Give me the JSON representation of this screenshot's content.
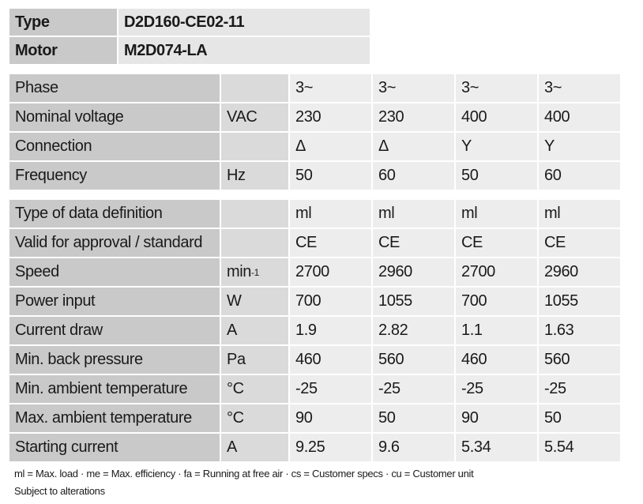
{
  "header": {
    "rows": [
      [
        "Type",
        "D2D160-CE02-11"
      ],
      [
        "Motor",
        "M2D074-LA"
      ]
    ]
  },
  "table": {
    "groups": [
      [
        {
          "label": "Phase",
          "values": [
            "3~",
            "3~",
            "3~",
            "3~"
          ]
        },
        {
          "label": "Nominal voltage",
          "unit": "VAC",
          "values": [
            230,
            230,
            400,
            400
          ]
        },
        {
          "label": "Connection",
          "values": [
            "Δ",
            "Δ",
            "Y",
            "Y"
          ]
        },
        {
          "label": "Frequency",
          "unit": "Hz",
          "values": [
            50,
            60,
            50,
            60
          ]
        }
      ],
      [
        {
          "label": "Type of data definition",
          "values": [
            "ml",
            "ml",
            "ml",
            "ml"
          ]
        },
        {
          "label": "Valid for approval / standard",
          "values": [
            "CE",
            "CE",
            "CE",
            "CE"
          ]
        },
        {
          "label": "Speed",
          "unit": "min",
          "unit_sup": "-1",
          "values": [
            2700,
            2960,
            2700,
            2960
          ]
        },
        {
          "label": "Power input",
          "unit": "W",
          "values": [
            700,
            1055,
            700,
            1055
          ]
        },
        {
          "label": "Current draw",
          "unit": "A",
          "values": [
            1.9,
            2.82,
            1.1,
            1.63
          ]
        },
        {
          "label": "Min. back pressure",
          "unit": "Pa",
          "values": [
            460,
            560,
            460,
            560
          ]
        },
        {
          "label": "Min. ambient temperature",
          "unit": "°C",
          "values": [
            -25,
            -25,
            -25,
            -25
          ]
        },
        {
          "label": "Max. ambient temperature",
          "unit": "°C",
          "values": [
            90,
            50,
            90,
            50
          ]
        },
        {
          "label": "Starting current",
          "unit": "A",
          "values": [
            9.25,
            9.6,
            5.34,
            5.54
          ]
        }
      ]
    ]
  },
  "footnotes": [
    "ml = Max. load · me = Max. efficiency · fa = Running at free air · cs = Customer specs · cu = Customer unit",
    "Subject to alterations"
  ]
}
